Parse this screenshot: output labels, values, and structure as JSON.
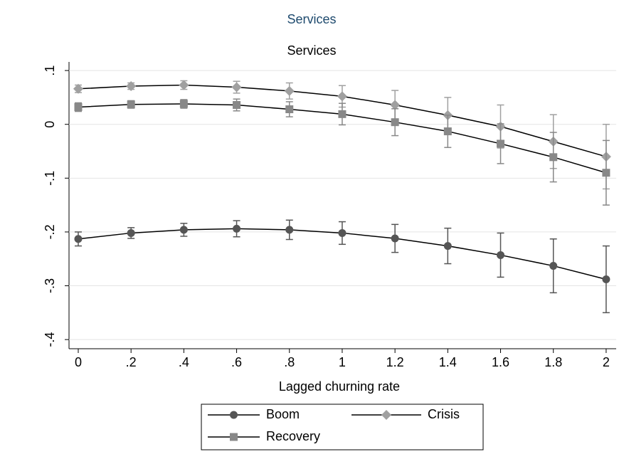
{
  "chart_data": {
    "type": "line",
    "title": "Services",
    "xlabel": "Lagged churning rate",
    "x": [
      0,
      0.2,
      0.4,
      0.6,
      0.8,
      1,
      1.2,
      1.4,
      1.6,
      1.8,
      2
    ],
    "xlim": [
      -0.035,
      2.038
    ],
    "xticks": [
      0,
      {
        "value": 0.2,
        "label": ".2"
      },
      {
        "value": 0.4,
        "label": ".4"
      },
      {
        "value": 0.6,
        "label": ".6"
      },
      {
        "value": 0.8,
        "label": ".8"
      },
      1,
      1.2,
      1.4,
      1.6,
      1.8,
      2
    ],
    "ylim": [
      -0.417,
      0.116
    ],
    "yticks": [
      {
        "value": -0.4,
        "label": "-.4"
      },
      {
        "value": -0.3,
        "label": "-.3"
      },
      {
        "value": -0.2,
        "label": "-.2"
      },
      {
        "value": -0.1,
        "label": "-.1"
      },
      0,
      {
        "value": 0.1,
        "label": ".1"
      }
    ],
    "grid": true,
    "series": [
      {
        "name": "Boom",
        "color": "#555555",
        "marker": "circle",
        "values": [
          -0.213,
          -0.202,
          -0.196,
          -0.194,
          -0.196,
          -0.202,
          -0.212,
          -0.226,
          -0.243,
          -0.263,
          -0.288
        ],
        "errors": [
          0.013,
          0.01,
          0.012,
          0.015,
          0.018,
          0.021,
          0.026,
          0.033,
          0.041,
          0.05,
          0.062
        ]
      },
      {
        "name": "Crisis",
        "color": "#a0a0a0",
        "marker": "diamond",
        "values": [
          0.066,
          0.071,
          0.073,
          0.069,
          0.062,
          0.052,
          0.036,
          0.017,
          -0.004,
          -0.032,
          -0.06
        ],
        "errors": [
          0.007,
          0.006,
          0.008,
          0.011,
          0.015,
          0.02,
          0.027,
          0.033,
          0.04,
          0.05,
          0.06
        ]
      },
      {
        "name": "Recovery",
        "color": "#888888",
        "marker": "square",
        "values": [
          0.032,
          0.037,
          0.038,
          0.036,
          0.028,
          0.019,
          0.004,
          -0.013,
          -0.036,
          -0.061,
          -0.09
        ],
        "errors": [
          0.008,
          0.007,
          0.008,
          0.011,
          0.014,
          0.02,
          0.025,
          0.03,
          0.037,
          0.046,
          0.06
        ]
      }
    ]
  }
}
